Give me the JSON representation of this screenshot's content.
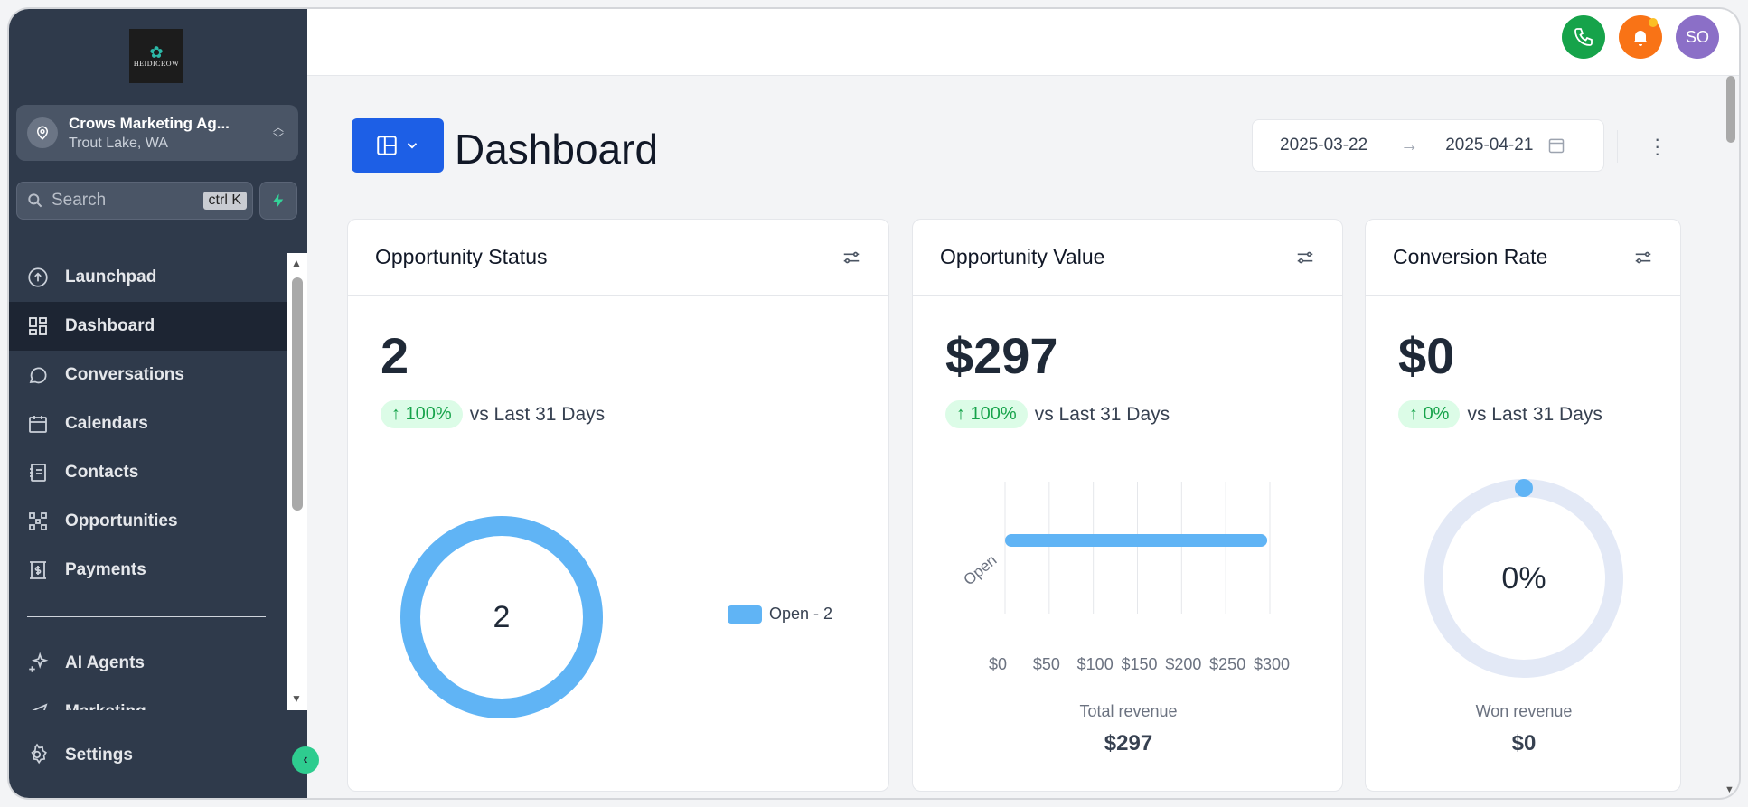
{
  "sidebar": {
    "logo_text": "HEIDICROW",
    "account": {
      "name": "Crows Marketing Ag...",
      "location": "Trout Lake, WA"
    },
    "search": {
      "placeholder": "Search",
      "shortcut": "ctrl K"
    },
    "items": [
      {
        "label": "Launchpad",
        "icon": "launchpad-icon",
        "active": false
      },
      {
        "label": "Dashboard",
        "icon": "dashboard-icon",
        "active": true
      },
      {
        "label": "Conversations",
        "icon": "chat-icon",
        "active": false
      },
      {
        "label": "Calendars",
        "icon": "calendar-icon",
        "active": false
      },
      {
        "label": "Contacts",
        "icon": "contacts-icon",
        "active": false
      },
      {
        "label": "Opportunities",
        "icon": "opportunities-icon",
        "active": false
      },
      {
        "label": "Payments",
        "icon": "payments-icon",
        "active": false
      }
    ],
    "items2": [
      {
        "label": "AI Agents",
        "icon": "sparkle-icon"
      },
      {
        "label": "Marketing",
        "icon": "send-icon"
      }
    ],
    "settings_label": "Settings"
  },
  "topbar": {
    "avatar_initials": "SO"
  },
  "header": {
    "title": "Dashboard",
    "date_start": "2025-03-22",
    "date_end": "2025-04-21"
  },
  "cards": {
    "status": {
      "title": "Opportunity Status",
      "value": "2",
      "trend": "100%",
      "vs": "vs Last 31 Days",
      "donut_center": "2",
      "legend": "Open - 2"
    },
    "value": {
      "title": "Opportunity Value",
      "value": "$297",
      "trend": "100%",
      "vs": "vs Last 31 Days",
      "total_label": "Total revenue",
      "total_value": "$297"
    },
    "conversion": {
      "title": "Conversion Rate",
      "value": "$0",
      "trend": "0%",
      "vs": "vs Last 31 Days",
      "gauge_center": "0%",
      "won_label": "Won revenue",
      "won_value": "$0"
    }
  },
  "chart_data": [
    {
      "type": "pie",
      "categories": [
        "Open"
      ],
      "values": [
        2
      ],
      "center_label": "2",
      "legend": [
        "Open - 2"
      ],
      "legend_position": "right",
      "color": "#60b4f5"
    },
    {
      "type": "bar",
      "orientation": "horizontal",
      "categories": [
        "Open"
      ],
      "values": [
        297
      ],
      "xlim": [
        0,
        300
      ],
      "x_ticks": [
        "$0",
        "$50",
        "$100",
        "$150",
        "$200",
        "$250",
        "$300"
      ],
      "grid": true,
      "color": "#60b4f5"
    },
    {
      "type": "gauge",
      "value": 0,
      "max": 100,
      "center_label": "0%",
      "color": "#60b4f5"
    }
  ],
  "colors": {
    "accent": "#1d5fe6",
    "chart": "#60b4f5",
    "sidebar": "#2f3a4b",
    "trend_up": "#16a34a"
  }
}
